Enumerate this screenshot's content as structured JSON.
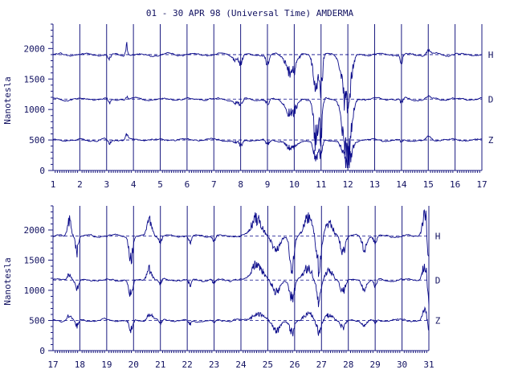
{
  "title": "01 - 30 APR 98 (Universal Time) AMDERMA",
  "ylabel": "Nanotesla",
  "colors": {
    "trace": "#0a0a8a",
    "axis": "#1a1a80",
    "text": "#101060",
    "background": "#ffffff"
  },
  "chart_data": [
    {
      "type": "line",
      "panel": "top",
      "x_ticks": [
        "1",
        "2",
        "3",
        "4",
        "5",
        "6",
        "7",
        "8",
        "9",
        "10",
        "11",
        "12",
        "13",
        "14",
        "15",
        "16",
        "17"
      ],
      "y_ticks": [
        "0",
        "500",
        "1000",
        "1500",
        "2000"
      ],
      "ylim": [
        0,
        2400
      ],
      "xlim": [
        1,
        17
      ],
      "grid": "vertical at each day",
      "series": [
        {
          "name": "H",
          "baseline": 1900
        },
        {
          "name": "D",
          "baseline": 1170
        },
        {
          "name": "Z",
          "baseline": 500
        }
      ]
    },
    {
      "type": "line",
      "panel": "bottom",
      "x_ticks": [
        "17",
        "18",
        "19",
        "20",
        "21",
        "22",
        "23",
        "24",
        "25",
        "26",
        "27",
        "28",
        "29",
        "30",
        "31"
      ],
      "y_ticks": [
        "0",
        "500",
        "1000",
        "1500",
        "2000"
      ],
      "ylim": [
        0,
        2400
      ],
      "xlim": [
        17,
        31
      ],
      "grid": "vertical at each day",
      "series": [
        {
          "name": "H",
          "baseline": 1900
        },
        {
          "name": "D",
          "baseline": 1170
        },
        {
          "name": "Z",
          "baseline": 500
        }
      ]
    }
  ]
}
